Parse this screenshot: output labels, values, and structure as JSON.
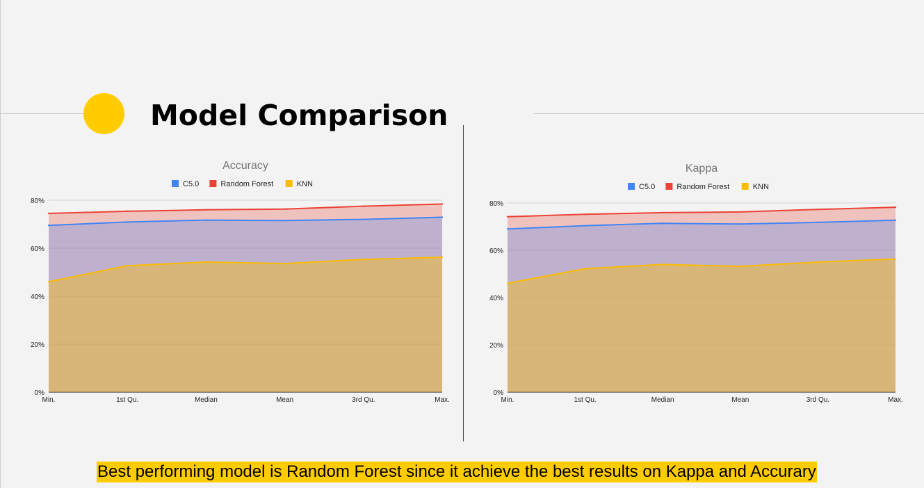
{
  "slide": {
    "title": "Model Comparison",
    "conclusion": "Best performing model is Random Forest since it achieve the best results on Kappa and Accurary",
    "accent_color": "#ffcc00"
  },
  "chart_data": [
    {
      "type": "area",
      "title": "Accuracy",
      "categories": [
        "Min.",
        "1st Qu.",
        "Median",
        "Mean",
        "3rd Qu.",
        "Max."
      ],
      "series": [
        {
          "name": "C5.0",
          "color": "#4285f4",
          "values": [
            0.695,
            0.709,
            0.717,
            0.715,
            0.72,
            0.729
          ]
        },
        {
          "name": "Random Forest",
          "color": "#ea4335",
          "values": [
            0.745,
            0.754,
            0.76,
            0.763,
            0.775,
            0.784
          ]
        },
        {
          "name": "KNN",
          "color": "#fbbc04",
          "values": [
            0.46,
            0.527,
            0.542,
            0.536,
            0.553,
            0.562
          ]
        }
      ],
      "ylim": [
        0,
        0.8
      ],
      "yticks": [
        "0%",
        "20%",
        "40%",
        "60%",
        "80%"
      ],
      "legend": "top",
      "grid": true
    },
    {
      "type": "area",
      "title": "Kappa",
      "categories": [
        "Min.",
        "1st Qu.",
        "Median",
        "Mean",
        "3rd Qu.",
        "Max."
      ],
      "series": [
        {
          "name": "C5.0",
          "color": "#4285f4",
          "values": [
            0.69,
            0.704,
            0.714,
            0.711,
            0.718,
            0.727
          ]
        },
        {
          "name": "Random Forest",
          "color": "#ea4335",
          "values": [
            0.742,
            0.752,
            0.759,
            0.762,
            0.773,
            0.782
          ]
        },
        {
          "name": "KNN",
          "color": "#fbbc04",
          "values": [
            0.46,
            0.522,
            0.54,
            0.532,
            0.55,
            0.563
          ]
        }
      ],
      "ylim": [
        0,
        0.8
      ],
      "yticks": [
        "0%",
        "20%",
        "40%",
        "60%",
        "80%"
      ],
      "legend": "top",
      "grid": true
    }
  ]
}
